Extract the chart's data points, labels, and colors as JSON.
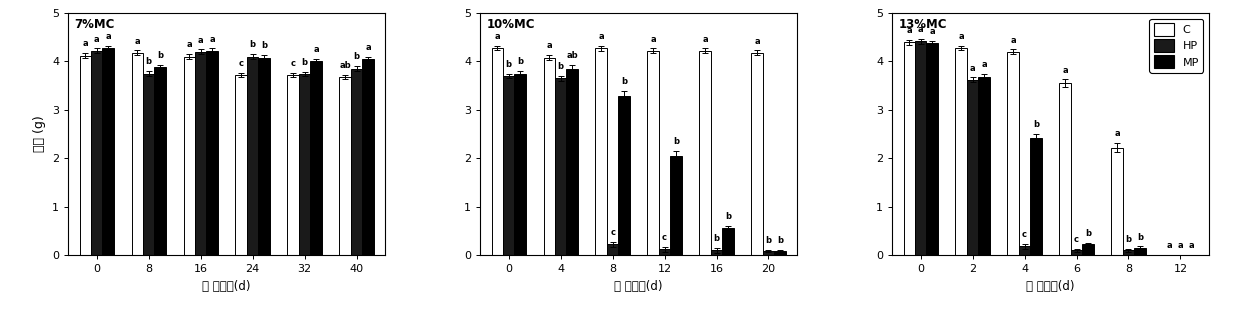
{
  "panel1": {
    "title": "7%MC",
    "xlabel": "劣 变时间(d)",
    "ylabel": "芙重 (g)",
    "xticks": [
      0,
      8,
      16,
      24,
      32,
      40
    ],
    "C": [
      4.12,
      4.18,
      4.1,
      3.72,
      3.72,
      3.68
    ],
    "HP": [
      4.22,
      3.75,
      4.2,
      4.1,
      3.74,
      3.85
    ],
    "MP": [
      4.28,
      3.88,
      4.22,
      4.08,
      4.0,
      4.05
    ],
    "C_err": [
      0.05,
      0.05,
      0.05,
      0.05,
      0.05,
      0.05
    ],
    "HP_err": [
      0.05,
      0.05,
      0.05,
      0.05,
      0.05,
      0.05
    ],
    "MP_err": [
      0.05,
      0.05,
      0.05,
      0.05,
      0.05,
      0.05
    ],
    "C_labels": [
      "a",
      "a",
      "a",
      "c",
      "c",
      "ab"
    ],
    "HP_labels": [
      "a",
      "b",
      "a",
      "b",
      "b",
      "b"
    ],
    "MP_labels": [
      "a",
      "b",
      "a",
      "b",
      "a",
      "a"
    ],
    "ylim": [
      0,
      5
    ]
  },
  "panel2": {
    "title": "10%MC",
    "xlabel": "劣 变时间(d)",
    "xticks": [
      0,
      4,
      8,
      12,
      16,
      20
    ],
    "C": [
      4.28,
      4.08,
      4.27,
      4.22,
      4.22,
      4.18
    ],
    "HP": [
      3.7,
      3.65,
      0.22,
      0.12,
      0.1,
      0.08
    ],
    "MP": [
      3.75,
      3.85,
      3.28,
      2.05,
      0.55,
      0.08
    ],
    "C_err": [
      0.05,
      0.05,
      0.05,
      0.05,
      0.05,
      0.05
    ],
    "HP_err": [
      0.05,
      0.05,
      0.05,
      0.05,
      0.05,
      0.02
    ],
    "MP_err": [
      0.05,
      0.08,
      0.12,
      0.1,
      0.05,
      0.02
    ],
    "C_labels": [
      "a",
      "a",
      "a",
      "a",
      "a",
      "a"
    ],
    "HP_labels": [
      "b",
      "b",
      "c",
      "c",
      "b",
      "b"
    ],
    "MP_labels": [
      "b",
      "ab",
      "b",
      "b",
      "b",
      "b"
    ],
    "ylim": [
      0,
      5
    ]
  },
  "panel3": {
    "title": "13%MC",
    "xlabel": "劣 变时间(d)",
    "xticks": [
      0,
      2,
      4,
      6,
      8,
      12
    ],
    "C": [
      4.4,
      4.28,
      4.2,
      3.55,
      2.22,
      0.0
    ],
    "HP": [
      4.42,
      3.62,
      0.18,
      0.1,
      0.1,
      0.0
    ],
    "MP": [
      4.38,
      3.68,
      2.42,
      0.22,
      0.15,
      0.0
    ],
    "C_err": [
      0.05,
      0.05,
      0.05,
      0.08,
      0.1,
      0.0
    ],
    "HP_err": [
      0.05,
      0.05,
      0.05,
      0.03,
      0.03,
      0.0
    ],
    "MP_err": [
      0.05,
      0.06,
      0.08,
      0.03,
      0.03,
      0.0
    ],
    "C_labels": [
      "a",
      "a",
      "a",
      "a",
      "a",
      "a"
    ],
    "HP_labels": [
      "a",
      "a",
      "c",
      "c",
      "b",
      "a"
    ],
    "MP_labels": [
      "a",
      "a",
      "b",
      "b",
      "b",
      "a"
    ],
    "ylim": [
      0,
      5
    ]
  },
  "bar_width": 0.22,
  "colors": {
    "C": "white",
    "HP": "#1a1a1a",
    "MP": "black"
  },
  "edgecolor": "black",
  "legend_labels": [
    "C",
    "HP",
    "MP"
  ],
  "legend_colors": [
    "white",
    "#1a1a1a",
    "black"
  ]
}
